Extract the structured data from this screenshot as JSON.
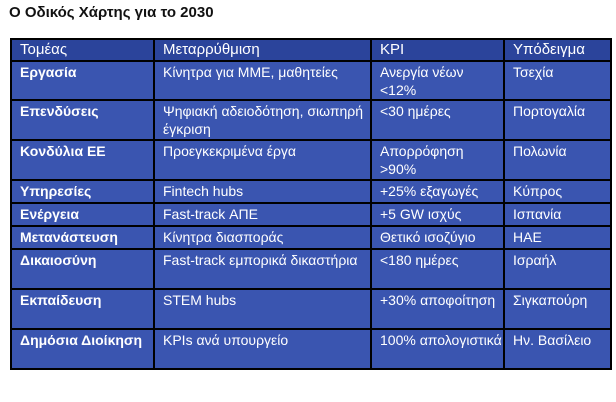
{
  "title": "Ο Οδικός Χάρτης για το 2030",
  "table": {
    "headers": [
      "Τομέας",
      "Μεταρρύθμιση",
      "KPI",
      "Υπόδειγμα"
    ],
    "rows": [
      {
        "sector": "Εργασία",
        "reform": "Κίνητρα για ΜΜΕ, μαθητείες",
        "kpi": "Ανεργία νέων <12%",
        "model": "Τσεχία"
      },
      {
        "sector": "Επενδύσεις",
        "reform": "Ψηφιακή αδειοδότηση, σιωπηρή έγκριση",
        "kpi": "<30 ημέρες",
        "model": "Πορτογαλία"
      },
      {
        "sector": "Κονδύλια ΕΕ",
        "reform": "Προεγκεκριμένα έργα",
        "kpi": "Απορρόφηση >90%",
        "model": "Πολωνία"
      },
      {
        "sector": "Υπηρεσίες",
        "reform": "Fintech hubs",
        "kpi": "+25% εξαγωγές",
        "model": "Κύπρος"
      },
      {
        "sector": "Ενέργεια",
        "reform": "Fast-track ΑΠΕ",
        "kpi": "+5 GW ισχύς",
        "model": "Ισπανία"
      },
      {
        "sector": "Μετανάστευση",
        "reform": "Κίνητρα διασποράς",
        "kpi": "Θετικό ισοζύγιο",
        "model": "ΗΑΕ"
      },
      {
        "sector": "Δικαιοσύνη",
        "reform": "Fast-track εμπορικά δικαστήρια",
        "kpi": "<180 ημέρες",
        "model": "Ισραήλ"
      },
      {
        "sector": "Εκπαίδευση",
        "reform": "STEM hubs",
        "kpi": "+30% αποφοίτηση",
        "model": "Σιγκαπούρη"
      },
      {
        "sector": "Δημόσια Διοίκηση",
        "reform": "KPIs ανά υπουργείο",
        "kpi": "100% απολογιστικά",
        "model": "Ην. Βασίλειο"
      }
    ]
  },
  "colors": {
    "table_background": "#3a55b0",
    "header_background": "#2b449b",
    "border": "#000000",
    "text": "#ffffff"
  }
}
